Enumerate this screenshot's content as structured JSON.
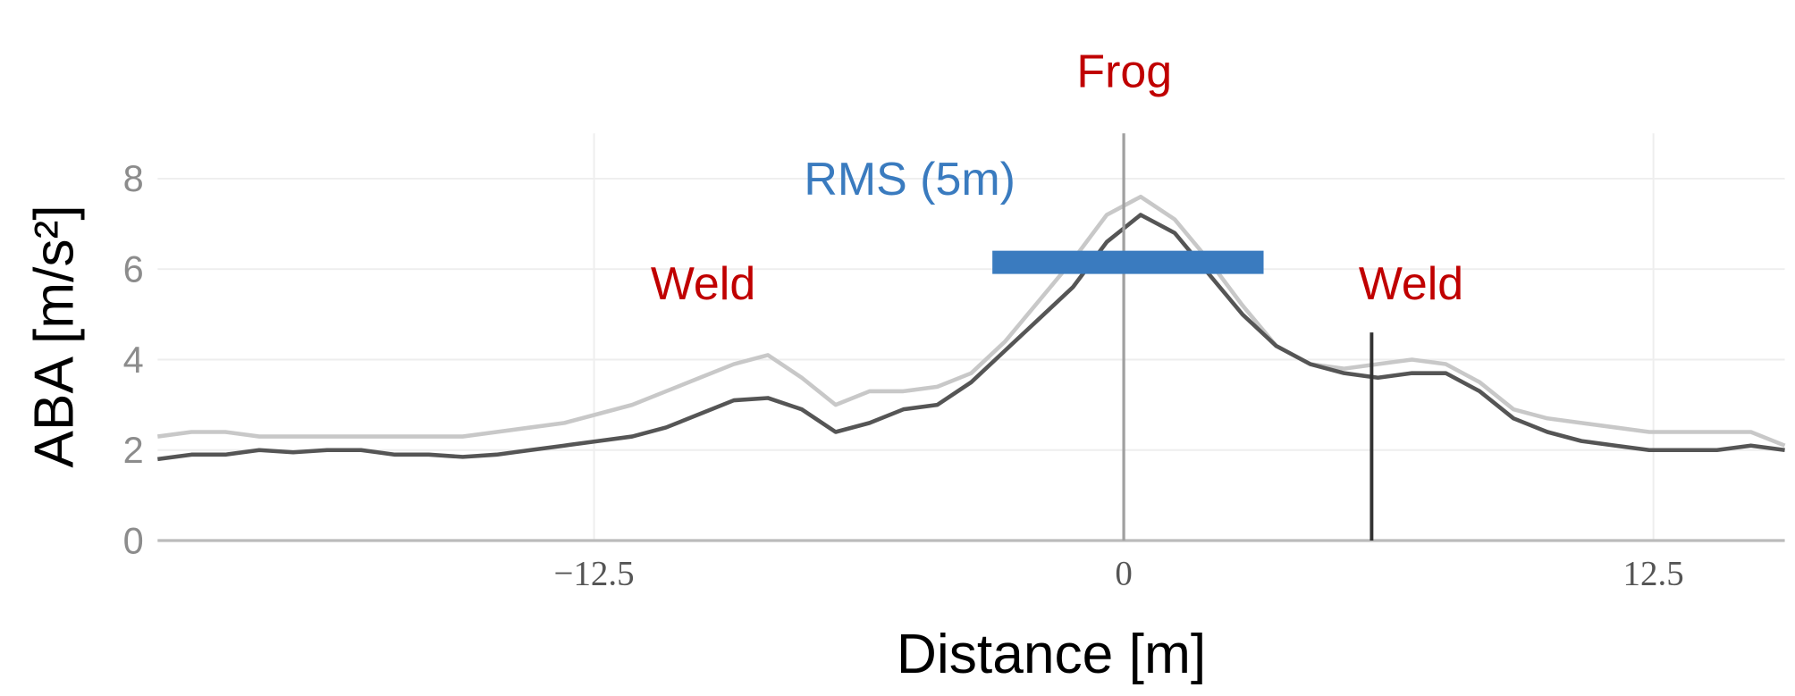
{
  "chart_data": {
    "type": "line",
    "xlabel": "Distance [m]",
    "ylabel": "ABA [m/s²]",
    "x": [
      -22.8,
      -22,
      -21.2,
      -20.4,
      -19.6,
      -18.8,
      -18,
      -17.2,
      -16.4,
      -15.6,
      -14.8,
      -14,
      -13.2,
      -12.4,
      -11.6,
      -10.8,
      -10,
      -9.2,
      -8.4,
      -7.6,
      -6.8,
      -6,
      -5.2,
      -4.4,
      -3.6,
      -2.8,
      -2,
      -1.2,
      -0.4,
      0.4,
      1.2,
      2,
      2.8,
      3.6,
      4.4,
      5.2,
      6,
      6.8,
      7.6,
      8.4,
      9.2,
      10,
      10.8,
      11.6,
      12.4,
      13.2,
      14,
      14.8,
      15.6
    ],
    "series": [
      {
        "color": "#c8c8c8",
        "values": [
          2.3,
          2.4,
          2.4,
          2.3,
          2.3,
          2.3,
          2.3,
          2.3,
          2.3,
          2.3,
          2.4,
          2.5,
          2.6,
          2.8,
          3.0,
          3.3,
          3.6,
          3.9,
          4.1,
          3.6,
          3.0,
          3.3,
          3.3,
          3.4,
          3.7,
          4.4,
          5.3,
          6.2,
          7.2,
          7.6,
          7.1,
          6.2,
          5.2,
          4.3,
          3.9,
          3.8,
          3.9,
          4.0,
          3.9,
          3.5,
          2.9,
          2.7,
          2.6,
          2.5,
          2.4,
          2.4,
          2.4,
          2.4,
          2.1
        ]
      },
      {
        "color": "#555555",
        "values": [
          1.8,
          1.9,
          1.9,
          2.0,
          1.95,
          2.0,
          2.0,
          1.9,
          1.9,
          1.85,
          1.9,
          2.0,
          2.1,
          2.2,
          2.3,
          2.5,
          2.8,
          3.1,
          3.15,
          2.9,
          2.4,
          2.6,
          2.9,
          3.0,
          3.5,
          4.2,
          4.9,
          5.6,
          6.6,
          7.2,
          6.8,
          5.9,
          5.0,
          4.3,
          3.9,
          3.7,
          3.6,
          3.7,
          3.7,
          3.3,
          2.7,
          2.4,
          2.2,
          2.1,
          2.0,
          2.0,
          2.0,
          2.1,
          2.0
        ]
      }
    ],
    "xlim": [
      -22.8,
      15.6
    ],
    "ylim": [
      0,
      9
    ],
    "xticks": [
      {
        "value": -12.5,
        "label": "−12.5"
      },
      0,
      12.5
    ],
    "yticks": [
      0,
      2,
      4,
      6,
      8
    ],
    "grid": true,
    "vlines": [
      {
        "x": 0,
        "color": "#a0a0a0"
      },
      {
        "x": 5.85,
        "y": 4.6,
        "color": "#333333"
      }
    ],
    "rms": {
      "label": "RMS (5m)",
      "x": [
        -3.1,
        3.3
      ],
      "y": 6.15,
      "color": "#3a7bbf"
    },
    "labels": [
      {
        "text": "Frog",
        "color": "#c00000"
      },
      {
        "text": "Weld",
        "color": "#c00000"
      },
      {
        "text": "Weld",
        "color": "#c00000"
      }
    ]
  }
}
